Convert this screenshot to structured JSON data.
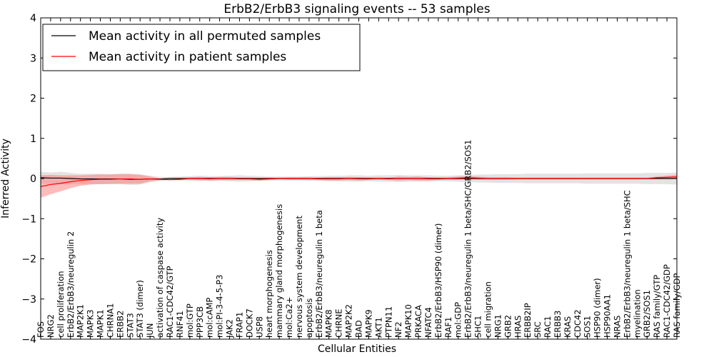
{
  "chart_data": {
    "type": "line",
    "title": "ErbB2/ErbB3 signaling events -- 53 samples",
    "xlabel": "Cellular Entities",
    "ylabel": "Inferred Activity",
    "ylim": [
      -4,
      4
    ],
    "yticks": [
      -4,
      -3,
      -2,
      -1,
      0,
      1,
      2,
      3,
      4
    ],
    "legend_position": "top-left",
    "categories": [
      "FOS",
      "NRG2",
      "cell proliferation",
      "ErbB2/ErbB3/neuregulin 2",
      "MAP2K1",
      "MAPK3",
      "MAPK1",
      "CHRNA1",
      "ERBB2",
      "STAT3",
      "STAT3 (dimer)",
      "JUN",
      "activation of caspase activity",
      "RAC1-CDC42/GTP",
      "RNF41",
      "mol:GTP",
      "PPP3CB",
      "mol:cAMP",
      "mol:PI-3-4-5-P3",
      "JAK2",
      "FRAP1",
      "DOCK7",
      "USP8",
      "heart morphogenesis",
      "mammary gland morphogenesis",
      "mol:Ca2+",
      "nervous system development",
      "apoptosis",
      "ErbB2/ErbB3/neuregulin 1 beta",
      "MAPK8",
      "CHRNE",
      "MAP2K2",
      "BAD",
      "MAPK9",
      "AKT1",
      "PTPN11",
      "NF2",
      "MAPK10",
      "PRKACA",
      "NFATC4",
      "ErbB2/ErbB3/HSP90 (dimer)",
      "RAF1",
      "mol:GDP",
      "ErbB2/ErbB3/neuregulin 1 beta/SHC/GRB2/SOS1",
      "SHC1",
      "cell migration",
      "NRG1",
      "GRB2",
      "HRAS",
      "ERBB2IP",
      "SRC",
      "RAC1",
      "ERBB3",
      "KRAS",
      "CDC42",
      "SOS1",
      "HSP90 (dimer)",
      "HSP90AA1",
      "NRAS",
      "ErbB2/ErbB3/neuregulin 1 beta/SHC",
      "myelination",
      "GRB2/SOS1",
      "RAS family/GTP",
      "RAC1-CDC42/GDP",
      "RAS family/GDP"
    ],
    "series": [
      {
        "name": "Mean activity in all permuted samples",
        "color": "#000000",
        "values": [
          0.02,
          0.01,
          0.01,
          0.0,
          -0.01,
          -0.01,
          -0.01,
          -0.01,
          -0.01,
          -0.02,
          -0.02,
          -0.01,
          -0.01,
          0.0,
          0.0,
          0.0,
          0.0,
          0.0,
          0.0,
          0.0,
          0.0,
          0.0,
          0.0,
          0.0,
          0.0,
          0.0,
          0.0,
          0.0,
          0.0,
          0.0,
          0.0,
          0.0,
          0.0,
          0.0,
          0.0,
          0.0,
          0.0,
          0.0,
          0.0,
          0.0,
          0.0,
          0.0,
          0.0,
          0.0,
          0.0,
          0.0,
          0.0,
          0.0,
          0.0,
          0.0,
          0.0,
          0.0,
          0.0,
          0.0,
          0.0,
          0.0,
          0.0,
          0.0,
          0.0,
          0.0,
          0.0,
          0.0,
          0.0,
          0.0,
          0.0
        ],
        "std": [
          0.15,
          0.14,
          0.16,
          0.14,
          0.13,
          0.13,
          0.13,
          0.12,
          0.13,
          0.14,
          0.13,
          0.08,
          0.05,
          0.04,
          0.05,
          0.06,
          0.07,
          0.06,
          0.06,
          0.07,
          0.08,
          0.07,
          0.06,
          0.05,
          0.05,
          0.05,
          0.05,
          0.06,
          0.06,
          0.07,
          0.07,
          0.08,
          0.08,
          0.07,
          0.08,
          0.08,
          0.09,
          0.08,
          0.08,
          0.08,
          0.07,
          0.07,
          0.08,
          0.09,
          0.1,
          0.1,
          0.11,
          0.11,
          0.11,
          0.12,
          0.12,
          0.12,
          0.12,
          0.12,
          0.12,
          0.13,
          0.13,
          0.13,
          0.13,
          0.13,
          0.13,
          0.14,
          0.14,
          0.14,
          0.15
        ]
      },
      {
        "name": "Mean activity in patient samples",
        "color": "#ff0000",
        "band_color": "#ff6666",
        "values": [
          -0.2,
          -0.15,
          -0.12,
          -0.08,
          -0.05,
          -0.03,
          -0.02,
          -0.02,
          -0.01,
          -0.01,
          -0.02,
          -0.01,
          -0.02,
          -0.03,
          -0.02,
          0.0,
          0.0,
          -0.01,
          0.0,
          0.0,
          -0.01,
          -0.01,
          -0.02,
          -0.01,
          0.0,
          0.0,
          0.0,
          0.0,
          -0.01,
          -0.01,
          -0.01,
          0.0,
          -0.01,
          -0.01,
          0.0,
          -0.01,
          0.0,
          0.0,
          0.0,
          -0.01,
          -0.01,
          0.0,
          0.01,
          0.02,
          0.01,
          0.0,
          0.0,
          0.0,
          0.0,
          0.0,
          0.0,
          0.0,
          0.0,
          0.0,
          0.0,
          0.0,
          0.0,
          0.0,
          0.0,
          0.0,
          0.0,
          0.0,
          0.02,
          0.03,
          0.04
        ],
        "std": [
          0.28,
          0.24,
          0.2,
          0.16,
          0.13,
          0.12,
          0.12,
          0.12,
          0.12,
          0.12,
          0.11,
          0.06,
          0.02,
          0.01,
          0.02,
          0.03,
          0.04,
          0.04,
          0.04,
          0.04,
          0.03,
          0.03,
          0.03,
          0.03,
          0.02,
          0.03,
          0.03,
          0.03,
          0.03,
          0.04,
          0.04,
          0.04,
          0.04,
          0.03,
          0.03,
          0.03,
          0.05,
          0.04,
          0.05,
          0.04,
          0.03,
          0.03,
          0.04,
          0.04,
          0.04,
          0.03,
          0.03,
          0.03,
          0.02,
          0.02,
          0.02,
          0.02,
          0.02,
          0.02,
          0.02,
          0.02,
          0.02,
          0.02,
          0.02,
          0.02,
          0.02,
          0.02,
          0.03,
          0.04,
          0.05
        ]
      }
    ]
  }
}
